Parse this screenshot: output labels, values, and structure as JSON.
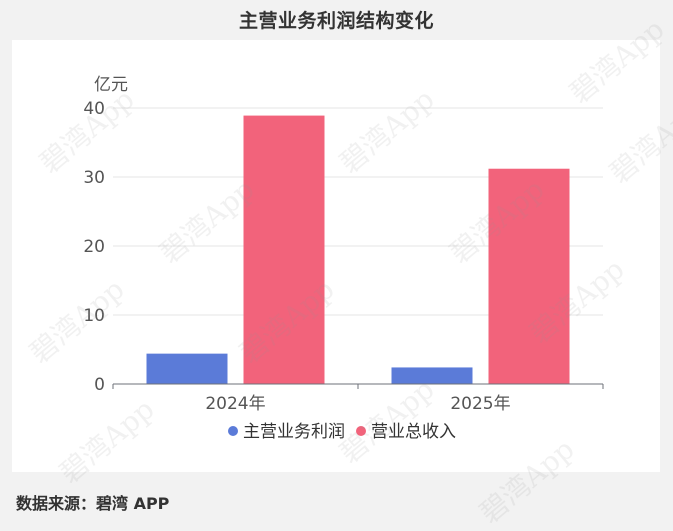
{
  "title": "主营业务利润结构变化",
  "source": "数据来源：碧湾 APP",
  "watermark": "碧湾App",
  "chart_data": {
    "type": "bar",
    "unit": "亿元",
    "categories": [
      "2024年",
      "2025年"
    ],
    "series": [
      {
        "name": "主营业务利润",
        "color": "#5b7bd8",
        "values": [
          4.4,
          2.4
        ]
      },
      {
        "name": "营业总收入",
        "color": "#f2637b",
        "values": [
          38.9,
          31.2
        ]
      }
    ],
    "ylim": [
      0,
      40
    ],
    "yticks": [
      0,
      10,
      20,
      30,
      40
    ],
    "grid": true,
    "legend": "bottom"
  }
}
